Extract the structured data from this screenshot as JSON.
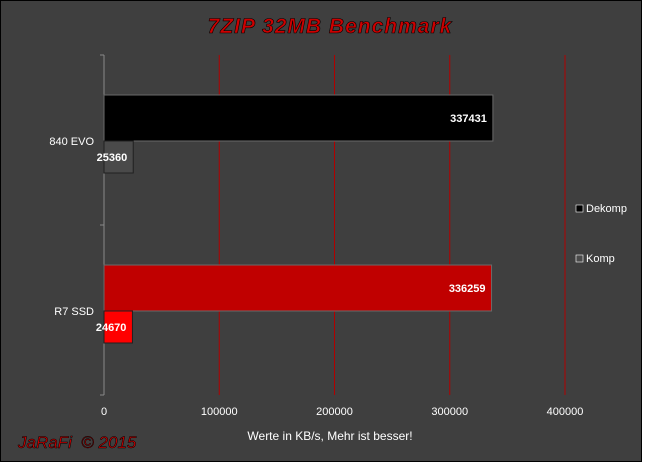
{
  "colors": {
    "background": "#3f3f3f",
    "frame_border": "#000000",
    "title": "#cc0000",
    "gridline": "#b00000",
    "axis_text": "#ffffff",
    "signature": "#cc0000",
    "dekomp_840": "#000000",
    "komp_840": "#4a4a4a",
    "dekomp_r7": "#c00000",
    "komp_r7": "#ff0000"
  },
  "chart_data": {
    "type": "bar",
    "orientation": "horizontal",
    "title": "7ZIP 32MB Benchmark",
    "xlabel": "Werte in KB/s, Mehr ist besser!",
    "ylabel": "",
    "xlim": [
      0,
      400000
    ],
    "x_ticks": [
      "0",
      "100000",
      "200000",
      "300000",
      "400000"
    ],
    "grid": true,
    "legend_position": "right",
    "categories": [
      "840 EVO",
      "R7 SSD"
    ],
    "series": [
      {
        "name": "Dekomp",
        "values": [
          337431,
          336259
        ],
        "legend_color": "#000000"
      },
      {
        "name": "Komp",
        "values": [
          25360,
          24670
        ],
        "legend_color": "#4a4a4a"
      }
    ],
    "data_labels": [
      [
        "337431",
        "336259"
      ],
      [
        "25360",
        "24670"
      ]
    ]
  },
  "signature": "JaRaFi  © 2015"
}
